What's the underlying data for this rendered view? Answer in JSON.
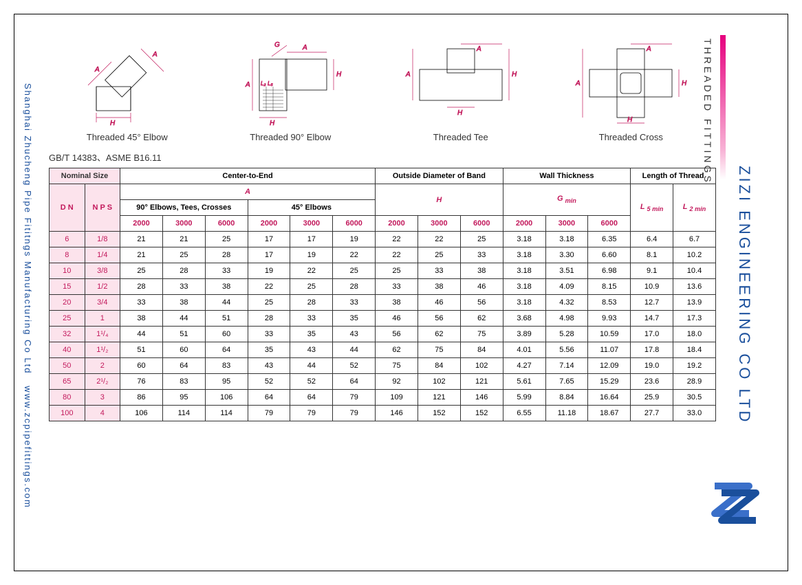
{
  "leftText": {
    "company": "Shanghai Zhucheng Pipe Fititngs Manufacturing Co Ltd",
    "url": "www.zcpipefittings.com"
  },
  "rightText": {
    "section": "THREADED FITTINGS",
    "company": "ZIZI ENGINEERING CO LTD"
  },
  "diagrams": {
    "d1": "Threaded 45° Elbow",
    "d2": "Threaded 90° Elbow",
    "d3": "Threaded Tee",
    "d4": "Threaded Cross"
  },
  "standard": "GB/T 14383、ASME B16.11",
  "headers": {
    "nominal": "Nominal Size",
    "cte": "Center-to-End",
    "odb": "Outside Diameter of Band",
    "wt": "Wall Thickness",
    "lot": "Length of Thread",
    "dn": "D N",
    "nps": "N P S",
    "a": "A",
    "h": "H",
    "gmin": "G ",
    "gmin_sub": "min",
    "l5": "L ",
    "l5_sub": "5 min",
    "l2": "L ",
    "l2_sub": "2 min",
    "sub90": "90° Elbows, Tees, Crosses",
    "sub45": "45° Elbows",
    "c2000": "2000",
    "c3000": "3000",
    "c6000": "6000"
  },
  "rows": [
    {
      "dn": "6",
      "nps": "1/8",
      "a90": [
        "21",
        "21",
        "25"
      ],
      "a45": [
        "17",
        "17",
        "19"
      ],
      "h": [
        "22",
        "22",
        "25"
      ],
      "g": [
        "3.18",
        "3.18",
        "6.35"
      ],
      "l5": "6.4",
      "l2": "6.7"
    },
    {
      "dn": "8",
      "nps": "1/4",
      "a90": [
        "21",
        "25",
        "28"
      ],
      "a45": [
        "17",
        "19",
        "22"
      ],
      "h": [
        "22",
        "25",
        "33"
      ],
      "g": [
        "3.18",
        "3.30",
        "6.60"
      ],
      "l5": "8.1",
      "l2": "10.2"
    },
    {
      "dn": "10",
      "nps": "3/8",
      "a90": [
        "25",
        "28",
        "33"
      ],
      "a45": [
        "19",
        "22",
        "25"
      ],
      "h": [
        "25",
        "33",
        "38"
      ],
      "g": [
        "3.18",
        "3.51",
        "6.98"
      ],
      "l5": "9.1",
      "l2": "10.4"
    },
    {
      "dn": "15",
      "nps": "1/2",
      "a90": [
        "28",
        "33",
        "38"
      ],
      "a45": [
        "22",
        "25",
        "28"
      ],
      "h": [
        "33",
        "38",
        "46"
      ],
      "g": [
        "3.18",
        "4.09",
        "8.15"
      ],
      "l5": "10.9",
      "l2": "13.6"
    },
    {
      "dn": "20",
      "nps": "3/4",
      "a90": [
        "33",
        "38",
        "44"
      ],
      "a45": [
        "25",
        "28",
        "33"
      ],
      "h": [
        "38",
        "46",
        "56"
      ],
      "g": [
        "3.18",
        "4.32",
        "8.53"
      ],
      "l5": "12.7",
      "l2": "13.9"
    },
    {
      "dn": "25",
      "nps": "1",
      "a90": [
        "38",
        "44",
        "51"
      ],
      "a45": [
        "28",
        "33",
        "35"
      ],
      "h": [
        "46",
        "56",
        "62"
      ],
      "g": [
        "3.68",
        "4.98",
        "9.93"
      ],
      "l5": "14.7",
      "l2": "17.3"
    },
    {
      "dn": "32",
      "nps": "1¹/₄",
      "a90": [
        "44",
        "51",
        "60"
      ],
      "a45": [
        "33",
        "35",
        "43"
      ],
      "h": [
        "56",
        "62",
        "75"
      ],
      "g": [
        "3.89",
        "5.28",
        "10.59"
      ],
      "l5": "17.0",
      "l2": "18.0"
    },
    {
      "dn": "40",
      "nps": "1¹/₂",
      "a90": [
        "51",
        "60",
        "64"
      ],
      "a45": [
        "35",
        "43",
        "44"
      ],
      "h": [
        "62",
        "75",
        "84"
      ],
      "g": [
        "4.01",
        "5.56",
        "11.07"
      ],
      "l5": "17.8",
      "l2": "18.4"
    },
    {
      "dn": "50",
      "nps": "2",
      "a90": [
        "60",
        "64",
        "83"
      ],
      "a45": [
        "43",
        "44",
        "52"
      ],
      "h": [
        "75",
        "84",
        "102"
      ],
      "g": [
        "4.27",
        "7.14",
        "12.09"
      ],
      "l5": "19.0",
      "l2": "19.2"
    },
    {
      "dn": "65",
      "nps": "2¹/₂",
      "a90": [
        "76",
        "83",
        "95"
      ],
      "a45": [
        "52",
        "52",
        "64"
      ],
      "h": [
        "92",
        "102",
        "121"
      ],
      "g": [
        "5.61",
        "7.65",
        "15.29"
      ],
      "l5": "23.6",
      "l2": "28.9"
    },
    {
      "dn": "80",
      "nps": "3",
      "a90": [
        "86",
        "95",
        "106"
      ],
      "a45": [
        "64",
        "64",
        "79"
      ],
      "h": [
        "109",
        "121",
        "146"
      ],
      "g": [
        "5.99",
        "8.84",
        "16.64"
      ],
      "l5": "25.9",
      "l2": "30.5"
    },
    {
      "dn": "100",
      "nps": "4",
      "a90": [
        "106",
        "114",
        "114"
      ],
      "a45": [
        "79",
        "79",
        "79"
      ],
      "h": [
        "146",
        "152",
        "152"
      ],
      "g": [
        "6.55",
        "11.18",
        "18.67"
      ],
      "l5": "27.7",
      "l2": "33.0"
    }
  ],
  "colors": {
    "pink": "#fce3ec",
    "magenta": "#c2185b",
    "blue": "#1a4f9c",
    "brandPink": "#e6007e"
  }
}
